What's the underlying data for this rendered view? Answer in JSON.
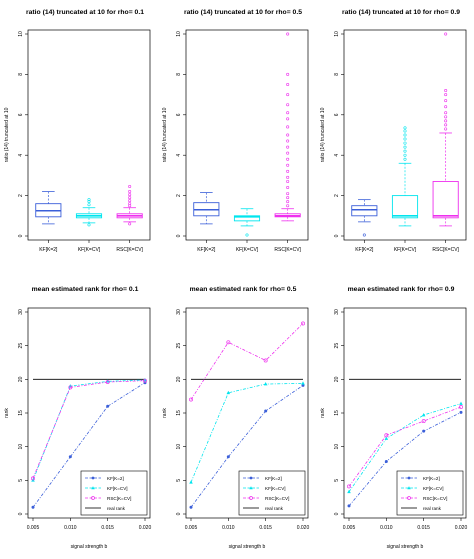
{
  "colors": {
    "kf2": "#3b5fd9",
    "kfcv": "#00e5ee",
    "rsc": "#ee30ee",
    "true_rank": "#000000",
    "axis": "#000000"
  },
  "chart_data": [
    {
      "type": "box",
      "title": "ratio (14) truncated at 10 for rho= 0.1",
      "ylabel": "ratio (14) truncated at 10",
      "xlabel": "",
      "ylim": [
        0,
        10
      ],
      "yticks": [
        "0",
        "2",
        "4",
        "6",
        "8",
        "10"
      ],
      "categories": [
        "KF[K=2]",
        "KF[K=CV]",
        "RSC[K=CV]"
      ],
      "boxes": [
        {
          "name": "KF[K=2]",
          "color": "kf2",
          "whisker_low": 0.6,
          "q1": 0.95,
          "median": 1.25,
          "q3": 1.6,
          "whisker_high": 2.2,
          "outliers": []
        },
        {
          "name": "KF[K=CV]",
          "color": "kfcv",
          "whisker_low": 0.65,
          "q1": 0.9,
          "median": 1.0,
          "q3": 1.1,
          "whisker_high": 1.4,
          "outliers": [
            1.55,
            1.7,
            1.8,
            0.55
          ]
        },
        {
          "name": "RSC[K=CV]",
          "color": "rsc",
          "whisker_low": 0.7,
          "q1": 0.9,
          "median": 1.0,
          "q3": 1.1,
          "whisker_high": 1.4,
          "outliers": [
            1.5,
            1.6,
            1.75,
            1.9,
            2.05,
            2.2,
            2.45,
            0.6
          ]
        }
      ]
    },
    {
      "type": "box",
      "title": "ratio (14) truncated at 10 for rho= 0.5",
      "ylabel": "ratio (14) truncated at 10",
      "xlabel": "",
      "ylim": [
        0,
        10
      ],
      "yticks": [
        "0",
        "2",
        "4",
        "6",
        "8",
        "10"
      ],
      "categories": [
        "KF[K=2]",
        "KF[K=CV]",
        "RSC[K=CV]"
      ],
      "boxes": [
        {
          "name": "KF[K=2]",
          "color": "kf2",
          "whisker_low": 0.6,
          "q1": 1.0,
          "median": 1.3,
          "q3": 1.65,
          "whisker_high": 2.15,
          "outliers": []
        },
        {
          "name": "KF[K=CV]",
          "color": "kfcv",
          "whisker_low": 0.5,
          "q1": 0.75,
          "median": 0.95,
          "q3": 1.0,
          "whisker_high": 1.35,
          "outliers": [
            0.05
          ]
        },
        {
          "name": "RSC[K=CV]",
          "color": "rsc",
          "whisker_low": 0.75,
          "q1": 0.95,
          "median": 1.0,
          "q3": 1.1,
          "whisker_high": 1.35,
          "outliers": [
            1.5,
            1.7,
            1.9,
            2.1,
            2.4,
            2.7,
            2.9,
            3.2,
            3.5,
            3.8,
            4.1,
            4.4,
            4.7,
            5.0,
            5.4,
            5.8,
            6.1,
            6.5,
            7.0,
            7.5,
            8.0,
            10.0
          ]
        }
      ]
    },
    {
      "type": "box",
      "title": "ratio (14) truncated at 10 for rho= 0.9",
      "ylabel": "ratio (14) truncated at 10",
      "xlabel": "",
      "ylim": [
        0,
        10
      ],
      "yticks": [
        "0",
        "2",
        "4",
        "6",
        "8",
        "10"
      ],
      "categories": [
        "KF[K=2]",
        "KF[K=CV]",
        "RSC[K=CV]"
      ],
      "boxes": [
        {
          "name": "KF[K=2]",
          "color": "kf2",
          "whisker_low": 0.7,
          "q1": 1.0,
          "median": 1.3,
          "q3": 1.5,
          "whisker_high": 1.8,
          "outliers": [
            0.05
          ]
        },
        {
          "name": "KF[K=CV]",
          "color": "kfcv",
          "whisker_low": 0.5,
          "q1": 0.9,
          "median": 1.0,
          "q3": 2.0,
          "whisker_high": 3.6,
          "outliers": [
            3.8,
            4.0,
            4.2,
            4.4,
            4.6,
            4.8,
            5.0,
            5.2,
            5.35
          ]
        },
        {
          "name": "RSC[K=CV]",
          "color": "rsc",
          "whisker_low": 0.5,
          "q1": 0.9,
          "median": 1.0,
          "q3": 2.7,
          "whisker_high": 5.1,
          "outliers": [
            5.3,
            5.5,
            5.7,
            5.9,
            6.1,
            6.4,
            6.7,
            7.0,
            7.2,
            10.0
          ]
        }
      ]
    },
    {
      "type": "line",
      "title": "mean estimated rank for rho= 0.1",
      "xlabel": "signal strength b",
      "ylabel": "rank",
      "xlim": [
        0.005,
        0.02
      ],
      "ylim": [
        0,
        30
      ],
      "xticks": [
        "0.005",
        "0.010",
        "0.015",
        "0.020"
      ],
      "yticks": [
        "0",
        "5",
        "10",
        "15",
        "20",
        "25",
        "30"
      ],
      "x": [
        0.005,
        0.01,
        0.015,
        0.02
      ],
      "series": [
        {
          "name": "KF[K=2]",
          "color": "kf2",
          "marker": "dot",
          "values": [
            1.0,
            8.5,
            16.0,
            19.5
          ]
        },
        {
          "name": "KF[K=CV]",
          "color": "kfcv",
          "marker": "tri",
          "values": [
            5.0,
            19.0,
            19.7,
            19.9
          ]
        },
        {
          "name": "RSC[K=CV]",
          "color": "rsc",
          "marker": "circle",
          "values": [
            5.3,
            18.8,
            19.6,
            19.8
          ]
        }
      ],
      "true_rank": {
        "name": "real rank",
        "value": 20
      },
      "legend": "bottom-right"
    },
    {
      "type": "line",
      "title": "mean estimated rank for rho= 0.5",
      "xlabel": "signal strength b",
      "ylabel": "rank",
      "xlim": [
        0.005,
        0.02
      ],
      "ylim": [
        0,
        30
      ],
      "xticks": [
        "0.005",
        "0.010",
        "0.015",
        "0.020"
      ],
      "yticks": [
        "0",
        "5",
        "10",
        "15",
        "20",
        "25",
        "30"
      ],
      "x": [
        0.005,
        0.01,
        0.015,
        0.02
      ],
      "series": [
        {
          "name": "KF[K=2]",
          "color": "kf2",
          "marker": "dot",
          "values": [
            1.0,
            8.5,
            15.3,
            19.1
          ]
        },
        {
          "name": "KF[K=CV]",
          "color": "kfcv",
          "marker": "tri",
          "values": [
            4.7,
            18.0,
            19.3,
            19.4
          ]
        },
        {
          "name": "RSC[K=CV]",
          "color": "rsc",
          "marker": "circle",
          "values": [
            17.0,
            25.5,
            22.8,
            28.3
          ]
        }
      ],
      "true_rank": {
        "name": "real rank",
        "value": 20
      },
      "legend": "bottom-right"
    },
    {
      "type": "line",
      "title": "mean estimated rank for rho= 0.9",
      "xlabel": "signal strength b",
      "ylabel": "rank",
      "xlim": [
        0.005,
        0.02
      ],
      "ylim": [
        0,
        30
      ],
      "xticks": [
        "0.005",
        "0.010",
        "0.015",
        "0.020"
      ],
      "yticks": [
        "0",
        "5",
        "10",
        "15",
        "20",
        "25",
        "30"
      ],
      "x": [
        0.005,
        0.01,
        0.015,
        0.02
      ],
      "series": [
        {
          "name": "KF[K=2]",
          "color": "kf2",
          "marker": "dot",
          "values": [
            1.2,
            7.8,
            12.3,
            15.1
          ]
        },
        {
          "name": "KF[K=CV]",
          "color": "kfcv",
          "marker": "tri",
          "values": [
            3.3,
            11.2,
            14.7,
            16.4
          ]
        },
        {
          "name": "RSC[K=CV]",
          "color": "rsc",
          "marker": "circle",
          "values": [
            4.1,
            11.7,
            13.8,
            15.9
          ]
        }
      ],
      "true_rank": {
        "name": "real rank",
        "value": 20
      },
      "legend": "bottom-right"
    }
  ]
}
